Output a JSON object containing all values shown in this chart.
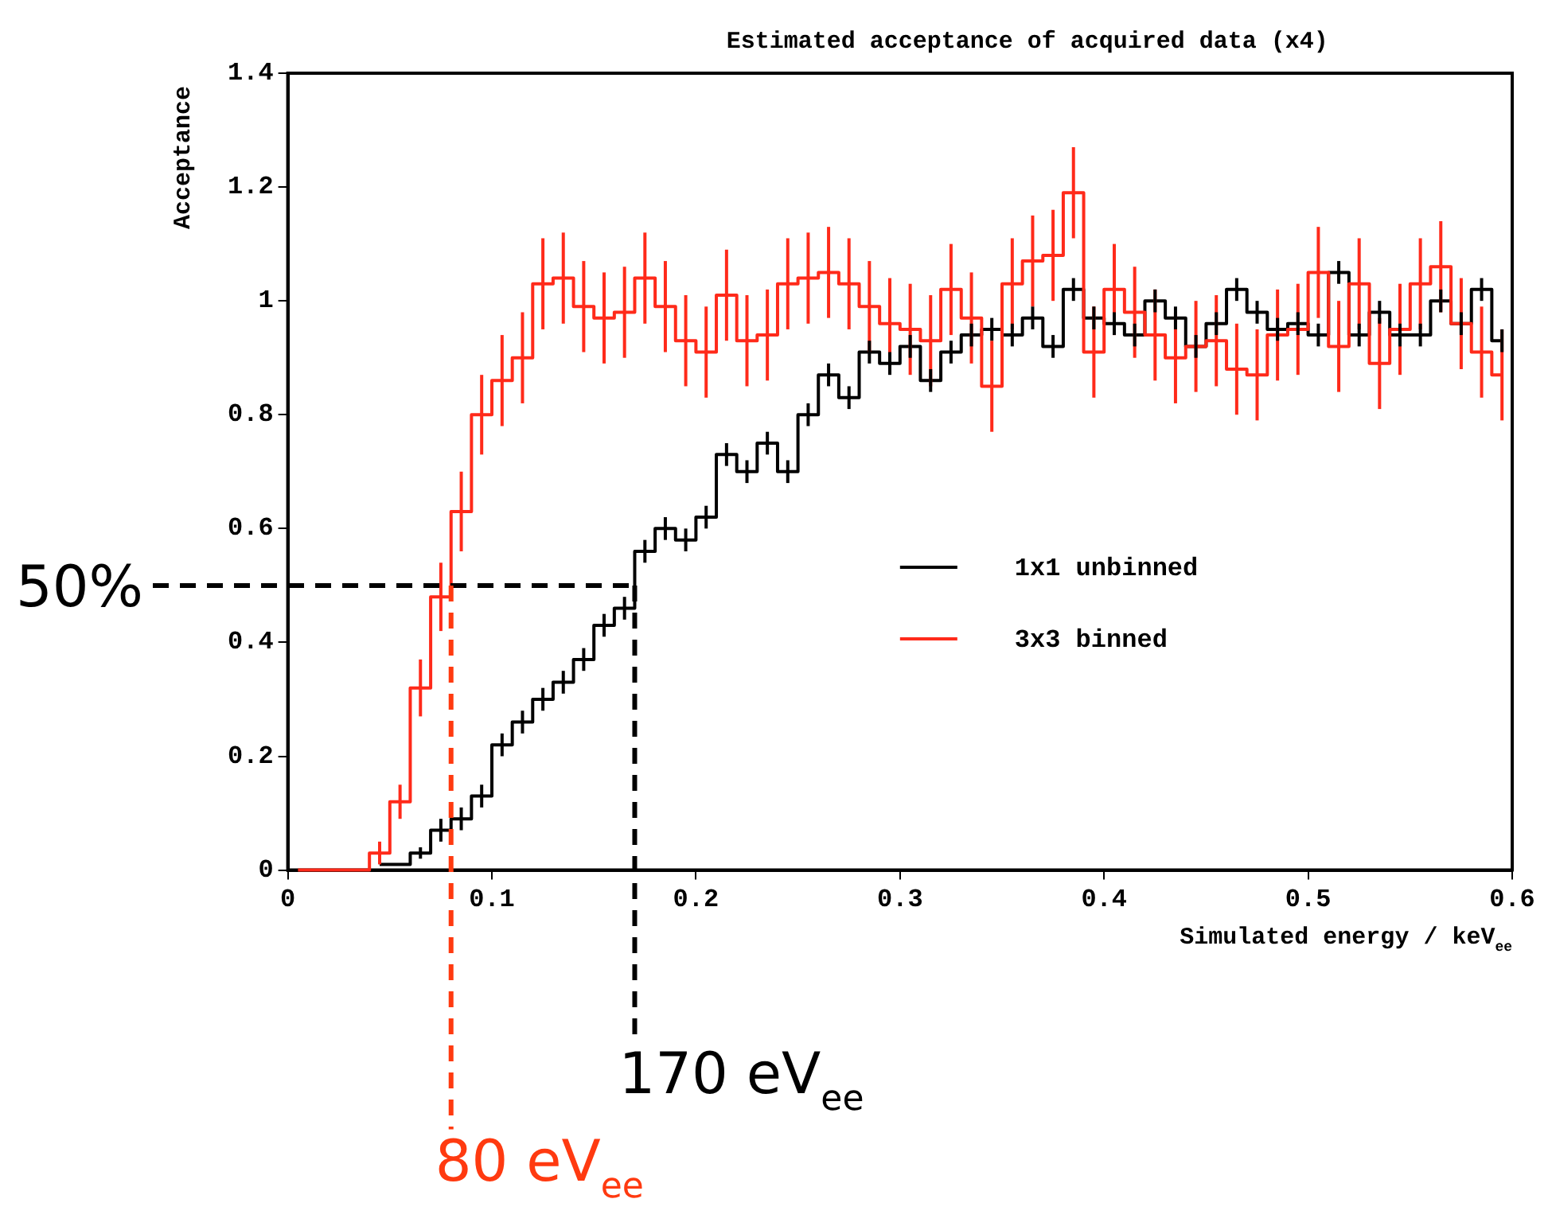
{
  "chart_data": {
    "type": "step",
    "title": "Estimated acceptance of acquired data (x4)",
    "xlabel": "Simulated energy / keV$_{ee}$",
    "ylabel": "Acceptance",
    "x": [
      0.005,
      0.015,
      0.025,
      0.035,
      0.045,
      0.055,
      0.065,
      0.075,
      0.085,
      0.095,
      0.105,
      0.115,
      0.125,
      0.135,
      0.145,
      0.155,
      0.165,
      0.175,
      0.185,
      0.195,
      0.205,
      0.215,
      0.225,
      0.235,
      0.245,
      0.255,
      0.265,
      0.275,
      0.285,
      0.295,
      0.305,
      0.315,
      0.325,
      0.335,
      0.345,
      0.355,
      0.365,
      0.375,
      0.385,
      0.395,
      0.405,
      0.415,
      0.425,
      0.435,
      0.445,
      0.455,
      0.465,
      0.475,
      0.485,
      0.495,
      0.505,
      0.515,
      0.525,
      0.535,
      0.545,
      0.555,
      0.565,
      0.575,
      0.585,
      0.595
    ],
    "series": [
      {
        "name": "1x1 unbinned",
        "color": "#000000",
        "values": [
          null,
          null,
          null,
          null,
          0.01,
          0.01,
          0.03,
          0.07,
          0.09,
          0.13,
          0.22,
          0.26,
          0.3,
          0.33,
          0.37,
          0.43,
          0.46,
          0.56,
          0.6,
          0.58,
          0.62,
          0.73,
          0.7,
          0.75,
          0.7,
          0.8,
          0.87,
          0.83,
          0.91,
          0.89,
          0.92,
          0.86,
          0.91,
          0.94,
          0.95,
          0.94,
          0.97,
          0.92,
          1.02,
          0.97,
          0.96,
          0.94,
          1.0,
          0.97,
          0.92,
          0.96,
          1.02,
          0.98,
          0.95,
          0.96,
          0.94,
          1.05,
          0.94,
          0.98,
          0.94,
          0.94,
          1.0,
          0.96,
          1.02,
          0.93
        ],
        "errors": [
          null,
          null,
          null,
          null,
          null,
          null,
          0.01,
          0.02,
          0.02,
          0.02,
          0.02,
          0.02,
          0.02,
          0.02,
          0.02,
          0.02,
          0.02,
          0.02,
          0.02,
          0.02,
          0.02,
          0.02,
          0.02,
          0.02,
          0.02,
          0.02,
          0.02,
          0.02,
          0.02,
          0.02,
          0.02,
          0.02,
          0.02,
          0.02,
          0.02,
          0.02,
          0.02,
          0.02,
          0.02,
          0.02,
          0.02,
          0.02,
          0.02,
          0.02,
          0.02,
          0.02,
          0.02,
          0.02,
          0.02,
          0.02,
          0.02,
          0.02,
          0.02,
          0.02,
          0.02,
          0.02,
          0.02,
          0.02,
          0.02,
          0.02
        ]
      },
      {
        "name": "3x3 binned",
        "color": "#ff2a1a",
        "values": [
          0,
          0,
          0,
          0,
          0.03,
          0.12,
          0.32,
          0.48,
          0.63,
          0.8,
          0.86,
          0.9,
          1.03,
          1.04,
          0.99,
          0.97,
          0.98,
          1.04,
          0.99,
          0.93,
          0.91,
          1.01,
          0.93,
          0.94,
          1.03,
          1.04,
          1.05,
          1.03,
          0.99,
          0.96,
          0.95,
          0.93,
          1.02,
          0.97,
          0.85,
          1.03,
          1.07,
          1.08,
          1.19,
          0.91,
          1.02,
          0.98,
          0.94,
          0.9,
          0.92,
          0.93,
          0.88,
          0.87,
          0.94,
          0.95,
          1.05,
          0.92,
          1.03,
          0.89,
          0.95,
          1.03,
          1.06,
          0.96,
          0.91,
          0.87
        ],
        "errors": [
          null,
          null,
          null,
          null,
          0.02,
          0.03,
          0.05,
          0.06,
          0.07,
          0.07,
          0.08,
          0.08,
          0.08,
          0.08,
          0.08,
          0.08,
          0.08,
          0.08,
          0.08,
          0.08,
          0.08,
          0.08,
          0.08,
          0.08,
          0.08,
          0.08,
          0.08,
          0.08,
          0.08,
          0.08,
          0.08,
          0.08,
          0.08,
          0.08,
          0.08,
          0.08,
          0.08,
          0.08,
          0.08,
          0.08,
          0.08,
          0.08,
          0.08,
          0.08,
          0.08,
          0.08,
          0.08,
          0.08,
          0.08,
          0.08,
          0.08,
          0.08,
          0.08,
          0.08,
          0.08,
          0.08,
          0.08,
          0.08,
          0.08,
          0.08
        ]
      }
    ],
    "xlim": [
      0,
      0.6
    ],
    "xticks": [
      0,
      0.1,
      0.2,
      0.3,
      0.4,
      0.5,
      0.6
    ],
    "ylim": [
      0,
      1.4
    ],
    "yticks": [
      0,
      0.2,
      0.4,
      0.6,
      0.8,
      1,
      1.2,
      1.4
    ],
    "legend": "right",
    "marker": "none",
    "line_style": "solid",
    "ref_lines": [
      {
        "axis": "y",
        "value": 0.5,
        "label": "50%",
        "color": "#000000",
        "line_style": "dashed"
      },
      {
        "axis": "x",
        "value": 0.08,
        "label": "80 eV$_{ee}$",
        "color": "#ff3a10",
        "line_style": "dashed"
      },
      {
        "axis": "x",
        "value": 0.17,
        "label": "170 eV$_{ee}$",
        "color": "#000000",
        "line_style": "dashed"
      }
    ]
  }
}
